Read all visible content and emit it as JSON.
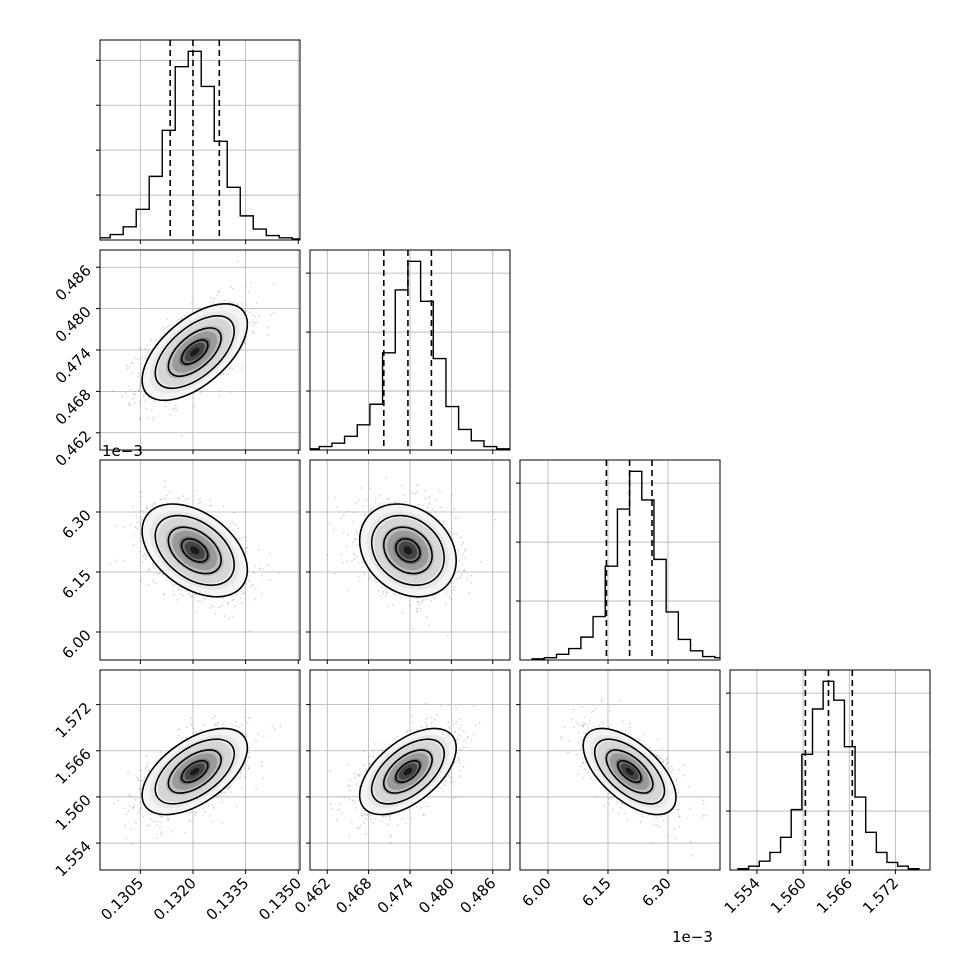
{
  "chart_data": {
    "type": "corner",
    "parameters": [
      {
        "range": [
          0.12935,
          0.13505
        ],
        "ticks": [
          0.1305,
          0.132,
          0.1335,
          0.135
        ],
        "tick_labels": [
          "0.1305",
          "0.1320",
          "0.1335",
          "0.1350"
        ],
        "offset_label": "",
        "mean": 0.13205,
        "std": 0.00075,
        "quantiles": [
          0.13135,
          0.132,
          0.13275
        ],
        "hist": [
          1,
          2,
          5,
          12,
          28,
          58,
          100,
          158,
          172,
          140,
          90,
          48,
          22,
          10,
          4,
          2,
          1
        ],
        "hist_yticks": 4
      },
      {
        "range": [
          0.4595,
          0.4885
        ],
        "ticks": [
          0.462,
          0.468,
          0.474,
          0.48,
          0.486
        ],
        "tick_labels": [
          "0.462",
          "0.468",
          "0.474",
          "0.480",
          "0.486"
        ],
        "offset_label": "",
        "mean": 0.4737,
        "std": 0.0035,
        "quantiles": [
          0.4702,
          0.4737,
          0.4771
        ],
        "hist": [
          1,
          3,
          6,
          12,
          22,
          40,
          85,
          140,
          165,
          130,
          80,
          38,
          18,
          8,
          3,
          1
        ],
        "hist_yticks": 3
      },
      {
        "range": [
          5.93,
          6.43
        ],
        "ticks": [
          6.0,
          6.15,
          6.3
        ],
        "tick_labels": [
          "6.00",
          "6.15",
          "6.30"
        ],
        "offset_label": "1e−3",
        "mean": 6.204,
        "std": 0.058,
        "quantiles": [
          6.146,
          6.204,
          6.26
        ],
        "hist": [
          1,
          2,
          5,
          10,
          20,
          38,
          82,
          132,
          165,
          140,
          88,
          42,
          18,
          8,
          3,
          2
        ],
        "hist_yticks": 3
      },
      {
        "range": [
          1.5505,
          1.5765
        ],
        "ticks": [
          1.554,
          1.56,
          1.566,
          1.572
        ],
        "tick_labels": [
          "1.554",
          "1.560",
          "1.566",
          "1.572"
        ],
        "offset_label": "",
        "mean": 1.5633,
        "std": 0.0028,
        "quantiles": [
          1.5603,
          1.5633,
          1.5664
        ],
        "hist": [
          1,
          3,
          7,
          14,
          26,
          48,
          92,
          128,
          150,
          135,
          98,
          58,
          30,
          14,
          6,
          3,
          1
        ],
        "hist_yticks": 3
      }
    ],
    "correlations": [
      [
        1.0,
        0.58,
        -0.42,
        0.55
      ],
      [
        0.58,
        1.0,
        -0.22,
        0.55
      ],
      [
        -0.42,
        -0.22,
        1.0,
        -0.6
      ],
      [
        0.55,
        0.55,
        -0.6,
        1.0
      ]
    ],
    "quantile_levels": [
      0.16,
      0.5,
      0.84
    ],
    "contour_levels_sigma": [
      0.5,
      1.0,
      1.5,
      2.0
    ],
    "grid": true,
    "title": "",
    "colors": {
      "line": "#000000",
      "grid": "#b0b0b0",
      "points": "#8a8a8a",
      "density_dark": "#1a1a1a"
    }
  }
}
